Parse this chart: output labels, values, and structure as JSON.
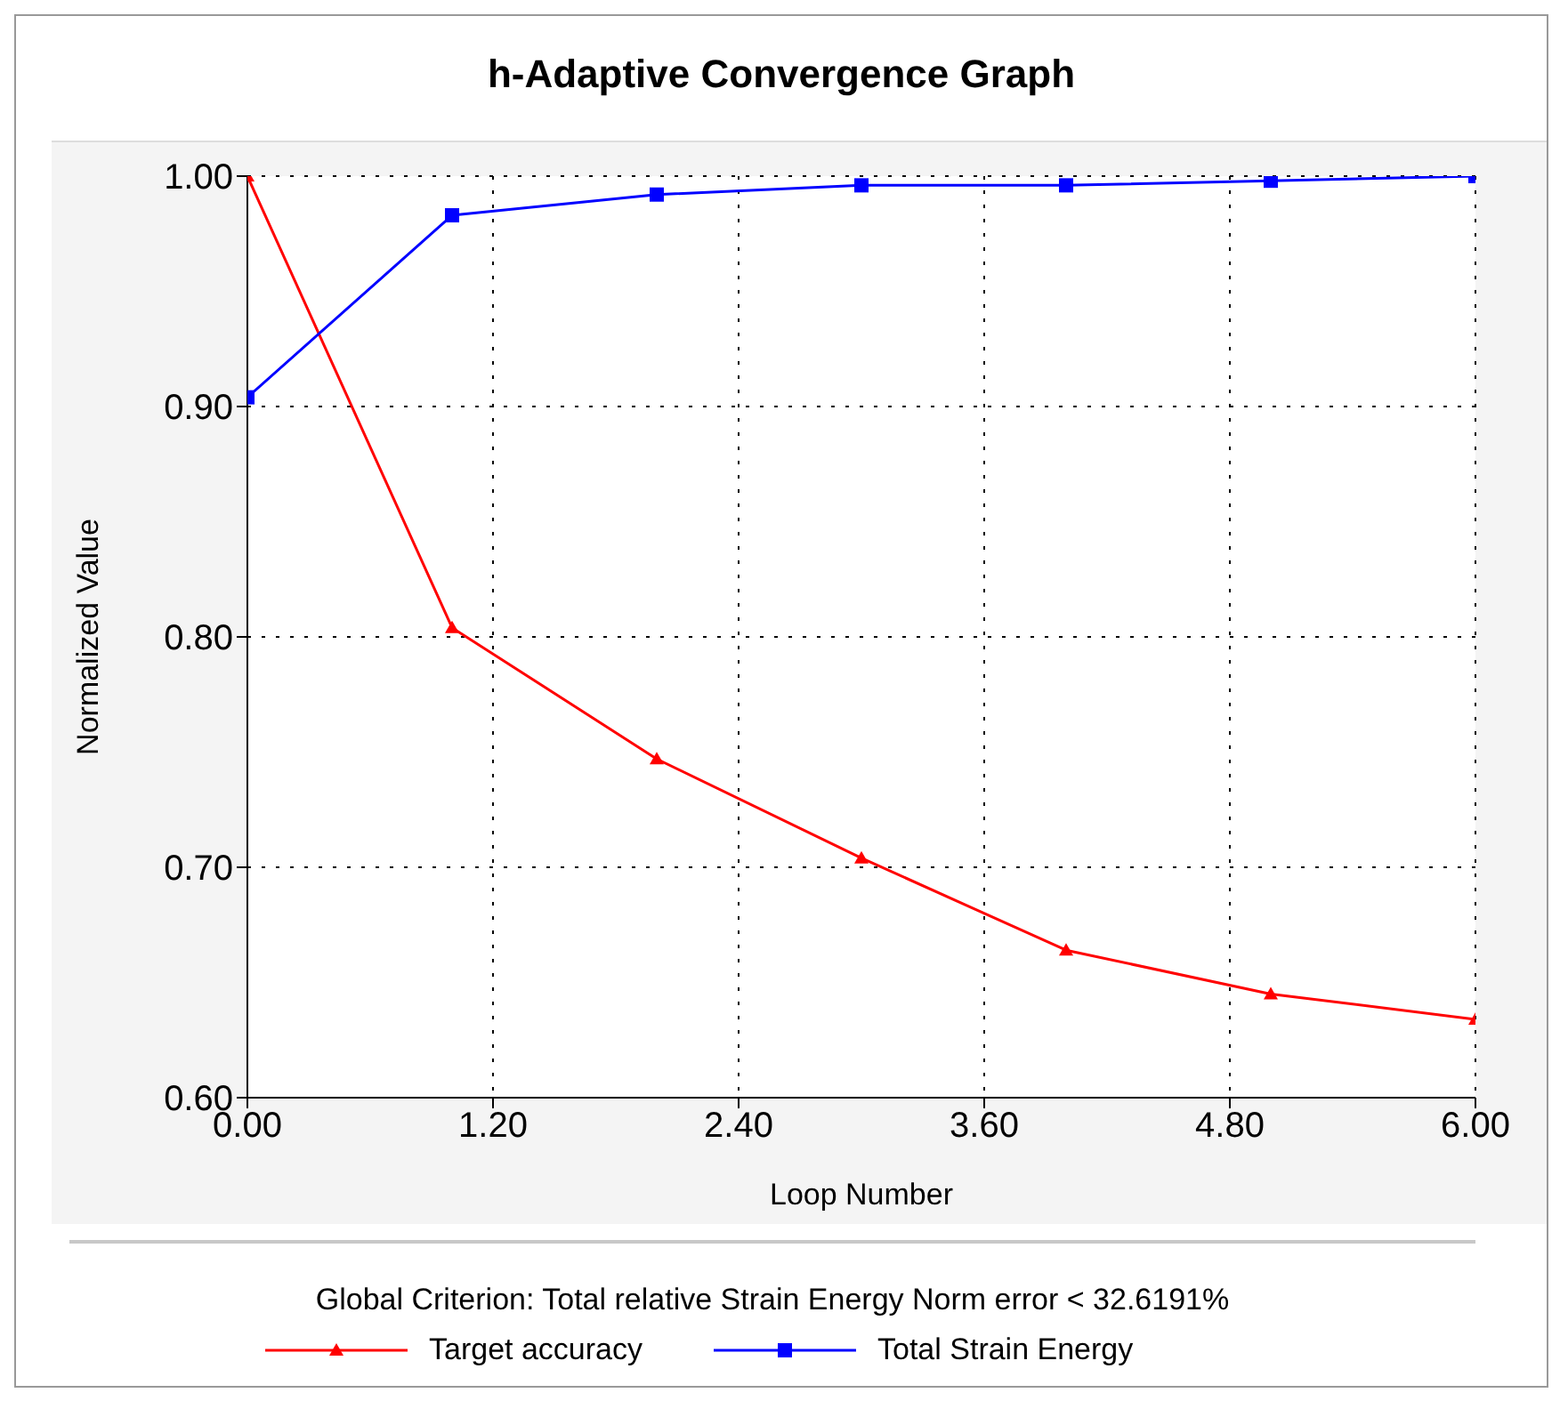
{
  "chart_data": {
    "type": "line",
    "title": "h-Adaptive Convergence Graph",
    "xlabel": "Loop Number",
    "ylabel": "Normalized Value",
    "annotations": [
      "Global Criterion: Total relative Strain Energy Norm error < 32.6191%"
    ],
    "x": [
      0,
      1,
      2,
      3,
      4,
      5,
      6
    ],
    "series": [
      {
        "name": "Target accuracy",
        "color": "#ff0000",
        "marker": "triangle",
        "values": [
          1.0,
          0.804,
          0.747,
          0.704,
          0.664,
          0.645,
          0.634
        ]
      },
      {
        "name": "Total Strain Energy",
        "color": "#0000ff",
        "marker": "square",
        "values": [
          0.904,
          0.983,
          0.992,
          0.996,
          0.996,
          0.998,
          1.0
        ]
      }
    ],
    "xlim": [
      0,
      6
    ],
    "xticks": [
      {
        "value": 0,
        "label": "0.00"
      },
      {
        "value": 1.2,
        "label": "1.20"
      },
      {
        "value": 2.4,
        "label": "2.40"
      },
      {
        "value": 3.6,
        "label": "3.60"
      },
      {
        "value": 4.8,
        "label": "4.80"
      },
      {
        "value": 6,
        "label": "6.00"
      }
    ],
    "ylim": [
      0.6,
      1.0
    ],
    "yticks": [
      {
        "value": 0.6,
        "label": "0.60"
      },
      {
        "value": 0.7,
        "label": "0.70"
      },
      {
        "value": 0.8,
        "label": "0.80"
      },
      {
        "value": 0.9,
        "label": "0.90"
      },
      {
        "value": 1.0,
        "label": "1.00"
      }
    ],
    "grid": true,
    "legend": "bottom",
    "line_style": "solid"
  }
}
